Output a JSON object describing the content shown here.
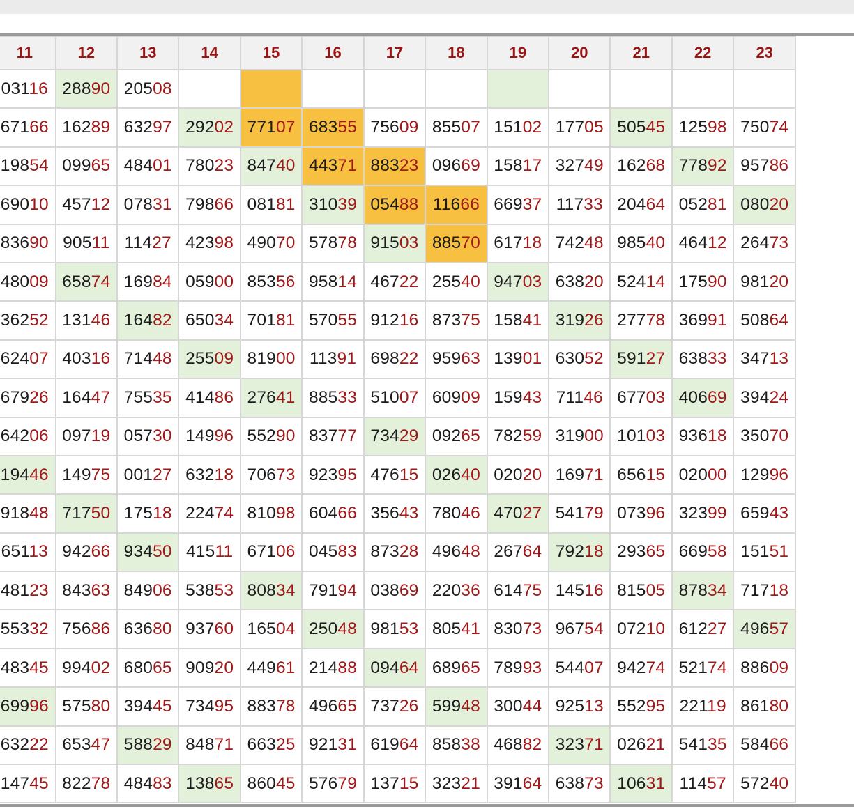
{
  "table": {
    "columns": [
      "",
      "11",
      "12",
      "13",
      "14",
      "15",
      "16",
      "17",
      "18",
      "19",
      "20",
      "21",
      "22",
      "23"
    ],
    "highlight_colors": {
      "green": "#e3f0da",
      "orange": "#f7c041"
    },
    "rows": [
      [
        "",
        "03116",
        "28890",
        "20508",
        "",
        "",
        "",
        "",
        "",
        "",
        "",
        "",
        "",
        ""
      ],
      [
        "",
        "67166",
        "16289",
        "63297",
        "29202",
        "77107",
        "68355",
        "75609",
        "85507",
        "15102",
        "17705",
        "50545",
        "12598",
        "75074"
      ],
      [
        "",
        "19854",
        "09965",
        "48401",
        "78023",
        "84740",
        "44371",
        "88323",
        "09669",
        "15817",
        "32749",
        "16268",
        "77892",
        "95786"
      ],
      [
        "",
        "69010",
        "45712",
        "07831",
        "79866",
        "08181",
        "31039",
        "05488",
        "11666",
        "66937",
        "11733",
        "20464",
        "05281",
        "08020"
      ],
      [
        "",
        "83690",
        "90511",
        "11427",
        "42398",
        "49070",
        "57878",
        "91503",
        "88570",
        "61718",
        "74248",
        "98540",
        "46412",
        "26473"
      ],
      [
        "",
        "48009",
        "65874",
        "16984",
        "05900",
        "85356",
        "95814",
        "46722",
        "25540",
        "94703",
        "63820",
        "52414",
        "17590",
        "98120"
      ],
      [
        "",
        "36252",
        "13146",
        "16482",
        "65034",
        "70181",
        "57055",
        "91216",
        "87375",
        "15841",
        "31926",
        "27778",
        "36991",
        "50864"
      ],
      [
        "",
        "62407",
        "40316",
        "71448",
        "25509",
        "81900",
        "11391",
        "69822",
        "95963",
        "13901",
        "63052",
        "59127",
        "63833",
        "34713"
      ],
      [
        "",
        "67926",
        "16447",
        "75535",
        "41486",
        "27641",
        "88533",
        "51007",
        "60909",
        "15943",
        "71146",
        "67703",
        "40669",
        "39424"
      ],
      [
        "",
        "64206",
        "09719",
        "05730",
        "14996",
        "55290",
        "83777",
        "73429",
        "09265",
        "78259",
        "31900",
        "10103",
        "93618",
        "35070"
      ],
      [
        "",
        "19446",
        "14975",
        "00127",
        "63218",
        "70673",
        "92395",
        "47615",
        "02640",
        "02020",
        "16971",
        "65615",
        "02000",
        "12996"
      ],
      [
        "",
        "91848",
        "71750",
        "17518",
        "22474",
        "81098",
        "60466",
        "35643",
        "78046",
        "47027",
        "54179",
        "07396",
        "32399",
        "65943"
      ],
      [
        "",
        "65113",
        "94266",
        "93450",
        "41511",
        "67106",
        "04583",
        "87328",
        "49648",
        "26764",
        "79218",
        "29365",
        "66958",
        "15151"
      ],
      [
        "",
        "48123",
        "84363",
        "84906",
        "53853",
        "80834",
        "79194",
        "03869",
        "22036",
        "61475",
        "14516",
        "81505",
        "87834",
        "71718"
      ],
      [
        "",
        "55332",
        "75686",
        "63680",
        "93760",
        "16504",
        "25048",
        "98153",
        "80541",
        "83073",
        "96754",
        "07210",
        "61227",
        "49657"
      ],
      [
        "",
        "48345",
        "99402",
        "68065",
        "90920",
        "44961",
        "21488",
        "09464",
        "68965",
        "78993",
        "54407",
        "94274",
        "52174",
        "88609"
      ],
      [
        "",
        "69996",
        "57580",
        "39445",
        "73495",
        "88378",
        "49665",
        "73726",
        "59948",
        "30044",
        "92513",
        "55295",
        "22119",
        "86180"
      ],
      [
        "",
        "63222",
        "65347",
        "58829",
        "84871",
        "66325",
        "92131",
        "61964",
        "85838",
        "46882",
        "32371",
        "02621",
        "54135",
        "58466"
      ],
      [
        "",
        "14745",
        "82278",
        "48483",
        "13865",
        "86045",
        "57679",
        "13715",
        "32321",
        "39164",
        "63873",
        "10631",
        "11457",
        "57240"
      ]
    ],
    "highlights": [
      [
        "",
        "",
        "green",
        "",
        "",
        "orange",
        "",
        "",
        "",
        "green",
        "",
        "",
        "",
        ""
      ],
      [
        "",
        "",
        "",
        "",
        "green",
        "orange",
        "orange",
        "",
        "",
        "",
        "",
        "green",
        "",
        ""
      ],
      [
        "",
        "",
        "",
        "",
        "",
        "green",
        "orange",
        "orange",
        "",
        "",
        "",
        "",
        "green",
        ""
      ],
      [
        "green",
        "",
        "",
        "",
        "",
        "",
        "green",
        "orange",
        "orange",
        "",
        "",
        "",
        "",
        "green"
      ],
      [
        "green",
        "",
        "",
        "",
        "",
        "",
        "",
        "green",
        "orange",
        "",
        "",
        "",
        "",
        ""
      ],
      [
        "",
        "",
        "green",
        "",
        "",
        "",
        "",
        "",
        "",
        "green",
        "",
        "",
        "",
        ""
      ],
      [
        "",
        "",
        "",
        "green",
        "",
        "",
        "",
        "",
        "",
        "",
        "green",
        "",
        "",
        ""
      ],
      [
        "",
        "",
        "",
        "",
        "green",
        "",
        "",
        "",
        "",
        "",
        "",
        "green",
        "",
        ""
      ],
      [
        "",
        "",
        "",
        "",
        "",
        "green",
        "",
        "",
        "",
        "",
        "",
        "",
        "green",
        ""
      ],
      [
        "green",
        "",
        "",
        "",
        "",
        "",
        "",
        "green",
        "",
        "",
        "",
        "",
        "",
        ""
      ],
      [
        "",
        "green",
        "",
        "",
        "",
        "",
        "",
        "",
        "green",
        "",
        "",
        "",
        "",
        ""
      ],
      [
        "",
        "",
        "green",
        "",
        "",
        "",
        "",
        "",
        "",
        "green",
        "",
        "",
        "",
        ""
      ],
      [
        "",
        "",
        "",
        "green",
        "",
        "",
        "",
        "",
        "",
        "",
        "green",
        "",
        "",
        ""
      ],
      [
        "",
        "",
        "",
        "",
        "",
        "green",
        "",
        "",
        "",
        "",
        "",
        "",
        "green",
        ""
      ],
      [
        "",
        "",
        "",
        "",
        "",
        "",
        "green",
        "",
        "",
        "",
        "",
        "",
        "",
        "green"
      ],
      [
        "green",
        "",
        "",
        "",
        "",
        "",
        "",
        "green",
        "",
        "",
        "",
        "",
        "",
        ""
      ],
      [
        "",
        "green",
        "",
        "",
        "",
        "",
        "",
        "",
        "green",
        "",
        "",
        "",
        "",
        ""
      ],
      [
        "",
        "",
        "",
        "green",
        "",
        "",
        "",
        "",
        "",
        "",
        "green",
        "",
        "",
        ""
      ],
      [
        "",
        "",
        "",
        "",
        "green",
        "",
        "",
        "",
        "",
        "",
        "",
        "green",
        "",
        ""
      ]
    ]
  }
}
